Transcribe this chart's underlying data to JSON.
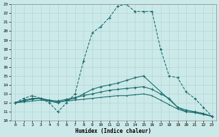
{
  "bg_color": "#cce9e9",
  "grid_color": "#aad0d0",
  "line_color": "#1a6b6b",
  "xlabel": "Humidex (Indice chaleur)",
  "xlim": [
    -0.5,
    23.5
  ],
  "ylim": [
    10,
    23
  ],
  "xticks": [
    0,
    1,
    2,
    3,
    4,
    5,
    6,
    7,
    8,
    9,
    10,
    11,
    12,
    13,
    14,
    15,
    16,
    17,
    18,
    19,
    20,
    21,
    22,
    23
  ],
  "yticks": [
    10,
    11,
    12,
    13,
    14,
    15,
    16,
    17,
    18,
    19,
    20,
    21,
    22,
    23
  ],
  "line1_x": [
    0,
    1,
    2,
    3,
    4,
    5,
    6,
    7,
    8,
    9,
    10,
    11,
    12,
    13,
    14,
    15,
    16,
    17,
    18,
    19,
    20,
    21,
    22,
    23
  ],
  "line1_y": [
    12,
    12.5,
    12.8,
    12.5,
    12.0,
    11.0,
    12.0,
    13.0,
    16.7,
    19.8,
    20.5,
    21.5,
    22.8,
    23.0,
    22.2,
    22.2,
    22.2,
    18.0,
    15.0,
    14.8,
    13.2,
    12.5,
    11.5,
    10.5
  ],
  "line2_x": [
    0,
    1,
    2,
    3,
    4,
    5,
    6,
    7,
    8,
    9,
    10,
    11,
    12,
    13,
    14,
    15,
    19,
    20,
    21,
    22,
    23
  ],
  "line2_y": [
    12,
    12.3,
    12.5,
    12.5,
    12.2,
    12.0,
    12.3,
    12.5,
    13.0,
    13.5,
    13.8,
    14.0,
    14.2,
    14.5,
    14.8,
    15.0,
    11.5,
    11.2,
    11.0,
    10.8,
    10.5
  ],
  "line3_x": [
    0,
    1,
    2,
    3,
    4,
    5,
    6,
    7,
    8,
    9,
    10,
    11,
    12,
    13,
    14,
    15,
    16,
    17,
    18,
    19,
    20,
    21,
    22,
    23
  ],
  "line3_y": [
    12,
    12.2,
    12.4,
    12.5,
    12.3,
    12.2,
    12.4,
    12.6,
    12.8,
    13.0,
    13.2,
    13.4,
    13.5,
    13.6,
    13.7,
    13.8,
    13.5,
    13.0,
    12.5,
    11.5,
    11.0,
    11.0,
    10.8,
    10.5
  ],
  "line4_x": [
    0,
    1,
    2,
    3,
    4,
    5,
    6,
    7,
    8,
    9,
    10,
    11,
    12,
    13,
    14,
    15,
    16,
    17,
    18,
    19,
    20,
    21,
    22,
    23
  ],
  "line4_y": [
    12,
    12.1,
    12.2,
    12.3,
    12.2,
    12.1,
    12.2,
    12.3,
    12.4,
    12.5,
    12.6,
    12.7,
    12.8,
    12.8,
    12.9,
    13.0,
    12.8,
    12.3,
    11.8,
    11.3,
    11.0,
    10.9,
    10.7,
    10.5
  ]
}
